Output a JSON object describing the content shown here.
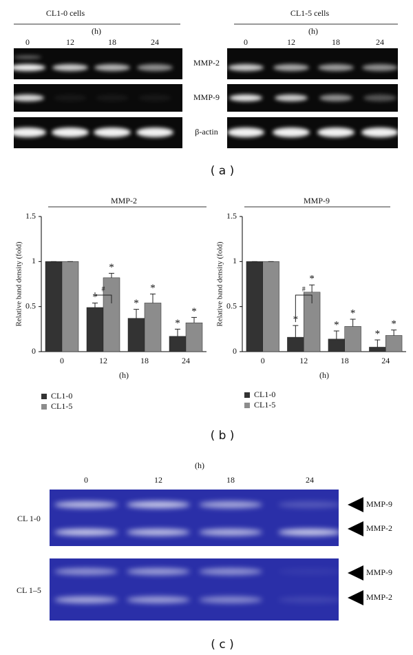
{
  "panel_a": {
    "left_title": "CL1-0 cells",
    "left_unit": "(h)",
    "left_lanes": [
      "0",
      "12",
      "18",
      "24"
    ],
    "right_title": "CL1-5 cells",
    "right_unit": "(h)",
    "right_lanes": [
      "0",
      "12",
      "18",
      "24"
    ],
    "rows": [
      "MMP-2",
      "MMP-9",
      "β-actin"
    ],
    "caption": "( a )"
  },
  "chart_data": [
    {
      "type": "bar",
      "title": "MMP-2",
      "y_label": "Relative band density (fold)",
      "x_label": "(h)",
      "categories": [
        "0",
        "12",
        "18",
        "24"
      ],
      "ylim": [
        0,
        1.5
      ],
      "yticks": [
        0,
        0.5,
        1,
        1.5
      ],
      "bracket_label": "#",
      "series": [
        {
          "name": "CL1-0",
          "color": "#333333",
          "values": [
            1,
            0.49,
            0.37,
            0.17
          ],
          "errors": [
            0,
            0.05,
            0.1,
            0.08
          ],
          "marks": [
            null,
            "*",
            "*",
            "*"
          ]
        },
        {
          "name": "CL1-5",
          "color": "#8c8c8c",
          "values": [
            1,
            0.82,
            0.54,
            0.32
          ],
          "errors": [
            0,
            0.05,
            0.1,
            0.06
          ],
          "marks": [
            null,
            "*",
            "*",
            "*"
          ]
        }
      ]
    },
    {
      "type": "bar",
      "title": "MMP-9",
      "y_label": "Relative band density (fold)",
      "x_label": "(h)",
      "categories": [
        "0",
        "12",
        "18",
        "24"
      ],
      "ylim": [
        0,
        1.5
      ],
      "yticks": [
        0,
        0.5,
        1,
        1.5
      ],
      "bracket_label": "#",
      "series": [
        {
          "name": "CL1-0",
          "color": "#333333",
          "values": [
            1,
            0.16,
            0.14,
            0.05
          ],
          "errors": [
            0,
            0.13,
            0.09,
            0.08
          ],
          "marks": [
            null,
            "*",
            "*",
            "*"
          ]
        },
        {
          "name": "CL1-5",
          "color": "#8c8c8c",
          "values": [
            1,
            0.66,
            0.28,
            0.18
          ],
          "errors": [
            0,
            0.08,
            0.08,
            0.06
          ],
          "marks": [
            null,
            "*",
            "*",
            "*"
          ]
        }
      ]
    }
  ],
  "panel_b_caption": "( b )",
  "panel_c": {
    "unit": "(h)",
    "lanes": [
      "0",
      "12",
      "18",
      "24"
    ],
    "rows": [
      "CL 1-0",
      "CL 1–5"
    ],
    "bands": [
      "MMP-9",
      "MMP-2",
      "MMP-9",
      "MMP-2"
    ],
    "caption": "( c )"
  }
}
